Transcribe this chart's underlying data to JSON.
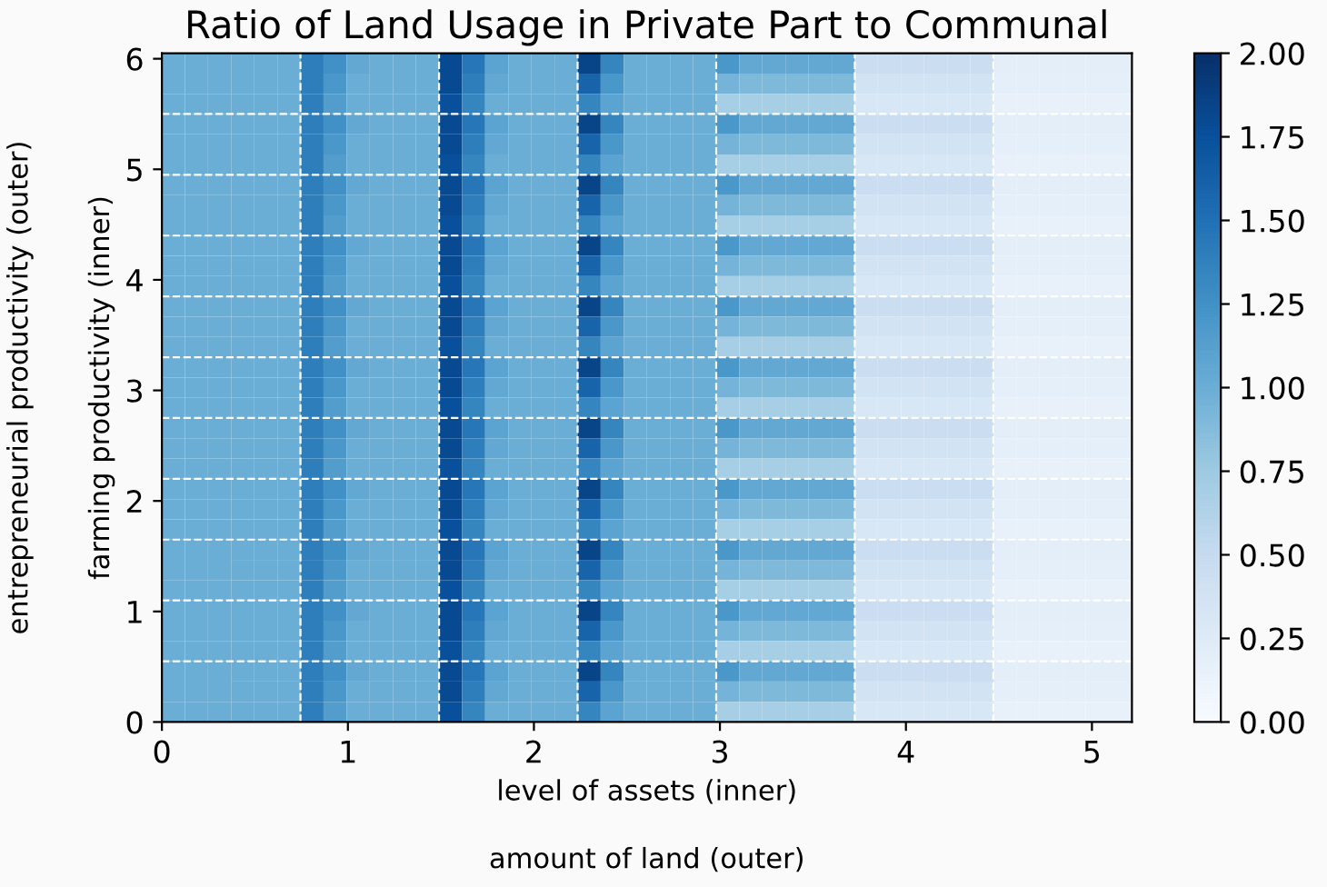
{
  "chart_data": {
    "type": "heatmap",
    "title": "Ratio of Land Usage in Private Part to Communal",
    "xlabel": "level of assets (inner)",
    "ylabel": "farming productivity (inner)",
    "annotations": [
      "amount of land (outer)",
      "entrepreneurial productivity (outer)"
    ],
    "x": [
      0.062,
      0.186,
      0.31,
      0.435,
      0.559,
      0.683,
      0.807,
      0.931,
      1.055,
      1.18,
      1.304,
      1.428,
      1.552,
      1.676,
      1.8,
      1.925,
      2.049,
      2.173,
      2.297,
      2.421,
      2.545,
      2.67,
      2.794,
      2.918,
      3.042,
      3.166,
      3.29,
      3.415,
      3.539,
      3.663,
      3.787,
      3.911,
      4.035,
      4.16,
      4.284,
      4.408,
      4.532,
      4.656,
      4.78,
      4.905,
      5.029,
      5.153
    ],
    "y": [
      5.958,
      5.775,
      5.592,
      5.408,
      5.225,
      5.042,
      4.858,
      4.675,
      4.492,
      4.308,
      4.125,
      3.942,
      3.758,
      3.575,
      3.392,
      3.208,
      3.025,
      2.842,
      2.658,
      2.475,
      2.292,
      2.108,
      1.925,
      1.742,
      1.558,
      1.375,
      1.192,
      1.008,
      0.825,
      0.642,
      0.458,
      0.275,
      0.092
    ],
    "xlim": [
      0,
      5.215
    ],
    "xticks": [
      0,
      1,
      2,
      3,
      4,
      5
    ],
    "ylim": [
      0,
      6.05
    ],
    "yticks": [
      0,
      1,
      2,
      3,
      4,
      5,
      6
    ],
    "clim": [
      0,
      2
    ],
    "cticks": [
      {
        "value": 0,
        "label": "0.00"
      },
      {
        "value": 0.25,
        "label": "0.25"
      },
      {
        "value": 0.5,
        "label": "0.50"
      },
      {
        "value": 0.75,
        "label": "0.75"
      },
      {
        "value": 1,
        "label": "1.00"
      },
      {
        "value": 1.25,
        "label": "1.25"
      },
      {
        "value": 1.5,
        "label": "1.50"
      },
      {
        "value": 1.75,
        "label": "1.75"
      },
      {
        "value": 2,
        "label": "2.00"
      }
    ],
    "grid": false,
    "ref_lines": [
      {
        "axis": "x",
        "value": 0.745,
        "color": "#ffffff",
        "line_style": "dashed"
      },
      {
        "axis": "x",
        "value": 1.49,
        "color": "#ffffff",
        "line_style": "dashed"
      },
      {
        "axis": "x",
        "value": 2.235,
        "color": "#ffffff",
        "line_style": "dashed"
      },
      {
        "axis": "x",
        "value": 2.98,
        "color": "#ffffff",
        "line_style": "dashed"
      },
      {
        "axis": "x",
        "value": 3.725,
        "color": "#ffffff",
        "line_style": "dashed"
      },
      {
        "axis": "x",
        "value": 4.47,
        "color": "#ffffff",
        "line_style": "dashed"
      },
      {
        "axis": "y",
        "value": 0.55,
        "color": "#ffffff",
        "line_style": "dashed"
      },
      {
        "axis": "y",
        "value": 1.1,
        "color": "#ffffff",
        "line_style": "dashed"
      },
      {
        "axis": "y",
        "value": 1.65,
        "color": "#ffffff",
        "line_style": "dashed"
      },
      {
        "axis": "y",
        "value": 2.2,
        "color": "#ffffff",
        "line_style": "dashed"
      },
      {
        "axis": "y",
        "value": 2.75,
        "color": "#ffffff",
        "line_style": "dashed"
      },
      {
        "axis": "y",
        "value": 3.3,
        "color": "#ffffff",
        "line_style": "dashed"
      },
      {
        "axis": "y",
        "value": 3.85,
        "color": "#ffffff",
        "line_style": "dashed"
      },
      {
        "axis": "y",
        "value": 4.4,
        "color": "#ffffff",
        "line_style": "dashed"
      },
      {
        "axis": "y",
        "value": 4.95,
        "color": "#ffffff",
        "line_style": "dashed"
      },
      {
        "axis": "y",
        "value": 5.5,
        "color": "#ffffff",
        "line_style": "dashed"
      }
    ],
    "cells": [
      [
        1,
        1,
        1,
        1,
        1,
        1,
        1.4,
        1.25,
        1.05,
        1,
        1,
        1,
        1.8,
        1.45,
        1.1,
        1,
        1,
        1,
        1.85,
        1.35,
        1,
        1,
        1,
        1,
        1.2,
        1.05,
        1.05,
        1.05,
        1.05,
        1.05,
        0.45,
        0.45,
        0.45,
        0.45,
        0.45,
        0.45,
        0.2,
        0.2,
        0.2,
        0.2,
        0.2,
        0.2
      ],
      [
        1,
        1,
        1,
        1,
        1,
        1,
        1.4,
        1.2,
        1,
        1,
        1,
        1,
        1.8,
        1.4,
        1.05,
        1,
        1,
        1,
        1.6,
        1.2,
        1,
        1,
        1,
        1,
        0.95,
        0.9,
        0.9,
        0.9,
        0.9,
        0.9,
        0.38,
        0.38,
        0.38,
        0.38,
        0.38,
        0.38,
        0.18,
        0.18,
        0.18,
        0.18,
        0.18,
        0.18
      ],
      [
        1,
        1,
        1,
        1,
        1,
        1,
        1.4,
        1.15,
        1,
        1,
        1,
        1,
        1.75,
        1.35,
        1,
        1,
        1,
        1,
        1.35,
        1.1,
        1,
        1,
        1,
        1,
        0.7,
        0.7,
        0.7,
        0.7,
        0.7,
        0.7,
        0.32,
        0.32,
        0.32,
        0.32,
        0.32,
        0.32,
        0.15,
        0.15,
        0.15,
        0.15,
        0.15,
        0.15
      ],
      [
        1,
        1,
        1,
        1,
        1,
        1,
        1.4,
        1.25,
        1.05,
        1,
        1,
        1,
        1.8,
        1.45,
        1.1,
        1,
        1,
        1,
        1.85,
        1.35,
        1,
        1,
        1,
        1,
        1.2,
        1.05,
        1.05,
        1.05,
        1.05,
        1.05,
        0.45,
        0.45,
        0.45,
        0.45,
        0.45,
        0.45,
        0.2,
        0.2,
        0.2,
        0.2,
        0.2,
        0.2
      ],
      [
        1,
        1,
        1,
        1,
        1,
        1,
        1.4,
        1.2,
        1,
        1,
        1,
        1,
        1.8,
        1.4,
        1.05,
        1,
        1,
        1,
        1.6,
        1.2,
        1,
        1,
        1,
        1,
        0.95,
        0.9,
        0.9,
        0.9,
        0.9,
        0.9,
        0.38,
        0.38,
        0.38,
        0.38,
        0.38,
        0.38,
        0.18,
        0.18,
        0.18,
        0.18,
        0.18,
        0.18
      ],
      [
        1,
        1,
        1,
        1,
        1,
        1,
        1.4,
        1.15,
        1,
        1,
        1,
        1,
        1.75,
        1.35,
        1,
        1,
        1,
        1,
        1.35,
        1.1,
        1,
        1,
        1,
        1,
        0.7,
        0.7,
        0.7,
        0.7,
        0.7,
        0.7,
        0.32,
        0.32,
        0.32,
        0.32,
        0.32,
        0.32,
        0.15,
        0.15,
        0.15,
        0.15,
        0.15,
        0.15
      ],
      [
        1,
        1,
        1,
        1,
        1,
        1,
        1.4,
        1.25,
        1.05,
        1,
        1,
        1,
        1.8,
        1.45,
        1.1,
        1,
        1,
        1,
        1.85,
        1.35,
        1,
        1,
        1,
        1,
        1.2,
        1.05,
        1.05,
        1.05,
        1.05,
        1.05,
        0.45,
        0.45,
        0.45,
        0.45,
        0.45,
        0.45,
        0.2,
        0.2,
        0.2,
        0.2,
        0.2,
        0.2
      ],
      [
        1,
        1,
        1,
        1,
        1,
        1,
        1.4,
        1.2,
        1,
        1,
        1,
        1,
        1.8,
        1.4,
        1.05,
        1,
        1,
        1,
        1.6,
        1.2,
        1,
        1,
        1,
        1,
        0.95,
        0.9,
        0.9,
        0.9,
        0.9,
        0.9,
        0.38,
        0.38,
        0.38,
        0.38,
        0.38,
        0.38,
        0.18,
        0.18,
        0.18,
        0.18,
        0.18,
        0.18
      ],
      [
        1,
        1,
        1,
        1,
        1,
        1,
        1.4,
        1.15,
        1,
        1,
        1,
        1,
        1.75,
        1.35,
        1,
        1,
        1,
        1,
        1.35,
        1.1,
        1,
        1,
        1,
        1,
        0.7,
        0.7,
        0.7,
        0.7,
        0.7,
        0.7,
        0.32,
        0.32,
        0.32,
        0.32,
        0.32,
        0.32,
        0.15,
        0.15,
        0.15,
        0.15,
        0.15,
        0.15
      ],
      [
        1,
        1,
        1,
        1,
        1,
        1,
        1.4,
        1.25,
        1.05,
        1,
        1,
        1,
        1.8,
        1.45,
        1.1,
        1,
        1,
        1,
        1.85,
        1.35,
        1,
        1,
        1,
        1,
        1.2,
        1.05,
        1.05,
        1.05,
        1.05,
        1.05,
        0.45,
        0.45,
        0.45,
        0.45,
        0.45,
        0.45,
        0.2,
        0.2,
        0.2,
        0.2,
        0.2,
        0.2
      ],
      [
        1,
        1,
        1,
        1,
        1,
        1,
        1.4,
        1.2,
        1,
        1,
        1,
        1,
        1.8,
        1.4,
        1.05,
        1,
        1,
        1,
        1.6,
        1.2,
        1,
        1,
        1,
        1,
        0.95,
        0.9,
        0.9,
        0.9,
        0.9,
        0.9,
        0.38,
        0.38,
        0.38,
        0.38,
        0.38,
        0.38,
        0.18,
        0.18,
        0.18,
        0.18,
        0.18,
        0.18
      ],
      [
        1,
        1,
        1,
        1,
        1,
        1,
        1.4,
        1.15,
        1,
        1,
        1,
        1,
        1.75,
        1.35,
        1,
        1,
        1,
        1,
        1.35,
        1.1,
        1,
        1,
        1,
        1,
        0.7,
        0.7,
        0.7,
        0.7,
        0.7,
        0.7,
        0.32,
        0.32,
        0.32,
        0.32,
        0.32,
        0.32,
        0.15,
        0.15,
        0.15,
        0.15,
        0.15,
        0.15
      ],
      [
        1,
        1,
        1,
        1,
        1,
        1,
        1.4,
        1.25,
        1.05,
        1,
        1,
        1,
        1.8,
        1.45,
        1.1,
        1,
        1,
        1,
        1.85,
        1.35,
        1,
        1,
        1,
        1,
        1.2,
        1.05,
        1.05,
        1.05,
        1.05,
        1.05,
        0.45,
        0.45,
        0.45,
        0.45,
        0.45,
        0.45,
        0.2,
        0.2,
        0.2,
        0.2,
        0.2,
        0.2
      ],
      [
        1,
        1,
        1,
        1,
        1,
        1,
        1.4,
        1.2,
        1,
        1,
        1,
        1,
        1.8,
        1.4,
        1.05,
        1,
        1,
        1,
        1.6,
        1.2,
        1,
        1,
        1,
        1,
        0.95,
        0.9,
        0.9,
        0.9,
        0.9,
        0.9,
        0.38,
        0.38,
        0.38,
        0.38,
        0.38,
        0.38,
        0.18,
        0.18,
        0.18,
        0.18,
        0.18,
        0.18
      ],
      [
        1,
        1,
        1,
        1,
        1,
        1,
        1.4,
        1.15,
        1,
        1,
        1,
        1,
        1.75,
        1.35,
        1,
        1,
        1,
        1,
        1.35,
        1.1,
        1,
        1,
        1,
        1,
        0.7,
        0.7,
        0.7,
        0.7,
        0.7,
        0.7,
        0.32,
        0.32,
        0.32,
        0.32,
        0.32,
        0.32,
        0.15,
        0.15,
        0.15,
        0.15,
        0.15,
        0.15
      ],
      [
        1,
        1,
        1,
        1,
        1,
        1,
        1.4,
        1.25,
        1.05,
        1,
        1,
        1,
        1.8,
        1.45,
        1.1,
        1,
        1,
        1,
        1.85,
        1.35,
        1,
        1,
        1,
        1,
        1.2,
        1.05,
        1.05,
        1.05,
        1.05,
        1.05,
        0.45,
        0.45,
        0.45,
        0.45,
        0.45,
        0.45,
        0.2,
        0.2,
        0.2,
        0.2,
        0.2,
        0.2
      ],
      [
        1,
        1,
        1,
        1,
        1,
        1,
        1.4,
        1.2,
        1,
        1,
        1,
        1,
        1.8,
        1.4,
        1.05,
        1,
        1,
        1,
        1.6,
        1.2,
        1,
        1,
        1,
        1,
        0.95,
        0.9,
        0.9,
        0.9,
        0.9,
        0.9,
        0.38,
        0.38,
        0.38,
        0.38,
        0.38,
        0.38,
        0.18,
        0.18,
        0.18,
        0.18,
        0.18,
        0.18
      ],
      [
        1,
        1,
        1,
        1,
        1,
        1,
        1.4,
        1.15,
        1,
        1,
        1,
        1,
        1.75,
        1.35,
        1,
        1,
        1,
        1,
        1.35,
        1.1,
        1,
        1,
        1,
        1,
        0.7,
        0.7,
        0.7,
        0.7,
        0.7,
        0.7,
        0.32,
        0.32,
        0.32,
        0.32,
        0.32,
        0.32,
        0.15,
        0.15,
        0.15,
        0.15,
        0.15,
        0.15
      ],
      [
        1,
        1,
        1,
        1,
        1,
        1,
        1.4,
        1.25,
        1.05,
        1,
        1,
        1,
        1.8,
        1.45,
        1.1,
        1,
        1,
        1,
        1.85,
        1.35,
        1,
        1,
        1,
        1,
        1.2,
        1.05,
        1.05,
        1.05,
        1.05,
        1.05,
        0.45,
        0.45,
        0.45,
        0.45,
        0.45,
        0.45,
        0.2,
        0.2,
        0.2,
        0.2,
        0.2,
        0.2
      ],
      [
        1,
        1,
        1,
        1,
        1,
        1,
        1.4,
        1.2,
        1,
        1,
        1,
        1,
        1.8,
        1.4,
        1.05,
        1,
        1,
        1,
        1.6,
        1.2,
        1,
        1,
        1,
        1,
        0.95,
        0.9,
        0.9,
        0.9,
        0.9,
        0.9,
        0.38,
        0.38,
        0.38,
        0.38,
        0.38,
        0.38,
        0.18,
        0.18,
        0.18,
        0.18,
        0.18,
        0.18
      ],
      [
        1,
        1,
        1,
        1,
        1,
        1,
        1.4,
        1.15,
        1,
        1,
        1,
        1,
        1.75,
        1.35,
        1,
        1,
        1,
        1,
        1.35,
        1.1,
        1,
        1,
        1,
        1,
        0.7,
        0.7,
        0.7,
        0.7,
        0.7,
        0.7,
        0.32,
        0.32,
        0.32,
        0.32,
        0.32,
        0.32,
        0.15,
        0.15,
        0.15,
        0.15,
        0.15,
        0.15
      ],
      [
        1,
        1,
        1,
        1,
        1,
        1,
        1.4,
        1.25,
        1.05,
        1,
        1,
        1,
        1.8,
        1.45,
        1.1,
        1,
        1,
        1,
        1.85,
        1.35,
        1,
        1,
        1,
        1,
        1.2,
        1.05,
        1.05,
        1.05,
        1.05,
        1.05,
        0.45,
        0.45,
        0.45,
        0.45,
        0.45,
        0.45,
        0.2,
        0.2,
        0.2,
        0.2,
        0.2,
        0.2
      ],
      [
        1,
        1,
        1,
        1,
        1,
        1,
        1.4,
        1.2,
        1,
        1,
        1,
        1,
        1.8,
        1.4,
        1.05,
        1,
        1,
        1,
        1.6,
        1.2,
        1,
        1,
        1,
        1,
        0.95,
        0.9,
        0.9,
        0.9,
        0.9,
        0.9,
        0.38,
        0.38,
        0.38,
        0.38,
        0.38,
        0.38,
        0.18,
        0.18,
        0.18,
        0.18,
        0.18,
        0.18
      ],
      [
        1,
        1,
        1,
        1,
        1,
        1,
        1.4,
        1.15,
        1,
        1,
        1,
        1,
        1.75,
        1.35,
        1,
        1,
        1,
        1,
        1.35,
        1.1,
        1,
        1,
        1,
        1,
        0.7,
        0.7,
        0.7,
        0.7,
        0.7,
        0.7,
        0.32,
        0.32,
        0.32,
        0.32,
        0.32,
        0.32,
        0.15,
        0.15,
        0.15,
        0.15,
        0.15,
        0.15
      ],
      [
        1,
        1,
        1,
        1,
        1,
        1,
        1.4,
        1.25,
        1.05,
        1,
        1,
        1,
        1.8,
        1.45,
        1.1,
        1,
        1,
        1,
        1.85,
        1.35,
        1,
        1,
        1,
        1,
        1.2,
        1.05,
        1.05,
        1.05,
        1.05,
        1.05,
        0.45,
        0.45,
        0.45,
        0.45,
        0.45,
        0.45,
        0.2,
        0.2,
        0.2,
        0.2,
        0.2,
        0.2
      ],
      [
        1,
        1,
        1,
        1,
        1,
        1,
        1.4,
        1.2,
        1,
        1,
        1,
        1,
        1.8,
        1.4,
        1.05,
        1,
        1,
        1,
        1.6,
        1.2,
        1,
        1,
        1,
        1,
        0.95,
        0.9,
        0.9,
        0.9,
        0.9,
        0.9,
        0.38,
        0.38,
        0.38,
        0.38,
        0.38,
        0.38,
        0.18,
        0.18,
        0.18,
        0.18,
        0.18,
        0.18
      ],
      [
        1,
        1,
        1,
        1,
        1,
        1,
        1.4,
        1.15,
        1,
        1,
        1,
        1,
        1.75,
        1.35,
        1,
        1,
        1,
        1,
        1.35,
        1.1,
        1,
        1,
        1,
        1,
        0.7,
        0.7,
        0.7,
        0.7,
        0.7,
        0.7,
        0.32,
        0.32,
        0.32,
        0.32,
        0.32,
        0.32,
        0.15,
        0.15,
        0.15,
        0.15,
        0.15,
        0.15
      ],
      [
        1,
        1,
        1,
        1,
        1,
        1,
        1.4,
        1.25,
        1.05,
        1,
        1,
        1,
        1.8,
        1.45,
        1.1,
        1,
        1,
        1,
        1.85,
        1.35,
        1,
        1,
        1,
        1,
        1.2,
        1.05,
        1.05,
        1.05,
        1.05,
        1.05,
        0.45,
        0.45,
        0.45,
        0.45,
        0.45,
        0.45,
        0.2,
        0.2,
        0.2,
        0.2,
        0.2,
        0.2
      ],
      [
        1,
        1,
        1,
        1,
        1,
        1,
        1.4,
        1.2,
        1,
        1,
        1,
        1,
        1.8,
        1.4,
        1.05,
        1,
        1,
        1,
        1.6,
        1.2,
        1,
        1,
        1,
        1,
        0.95,
        0.9,
        0.9,
        0.9,
        0.9,
        0.9,
        0.38,
        0.38,
        0.38,
        0.38,
        0.38,
        0.38,
        0.18,
        0.18,
        0.18,
        0.18,
        0.18,
        0.18
      ],
      [
        1,
        1,
        1,
        1,
        1,
        1,
        1.4,
        1.15,
        1,
        1,
        1,
        1,
        1.75,
        1.35,
        1,
        1,
        1,
        1,
        1.35,
        1.1,
        1,
        1,
        1,
        1,
        0.7,
        0.7,
        0.7,
        0.7,
        0.7,
        0.7,
        0.32,
        0.32,
        0.32,
        0.32,
        0.32,
        0.32,
        0.15,
        0.15,
        0.15,
        0.15,
        0.15,
        0.15
      ],
      [
        1,
        1,
        1,
        1,
        1,
        1,
        1.4,
        1.25,
        1.05,
        1,
        1,
        1,
        1.8,
        1.45,
        1.1,
        1,
        1,
        1,
        1.85,
        1.35,
        1,
        1,
        1,
        1,
        1.2,
        1.05,
        1.05,
        1.05,
        1.05,
        1.05,
        0.45,
        0.45,
        0.45,
        0.45,
        0.45,
        0.45,
        0.2,
        0.2,
        0.2,
        0.2,
        0.2,
        0.2
      ],
      [
        1,
        1,
        1,
        1,
        1,
        1,
        1.4,
        1.2,
        1,
        1,
        1,
        1,
        1.8,
        1.4,
        1.05,
        1,
        1,
        1,
        1.6,
        1.2,
        1,
        1,
        1,
        1,
        0.95,
        0.9,
        0.9,
        0.9,
        0.9,
        0.9,
        0.38,
        0.38,
        0.38,
        0.38,
        0.38,
        0.38,
        0.18,
        0.18,
        0.18,
        0.18,
        0.18,
        0.18
      ],
      [
        1,
        1,
        1,
        1,
        1,
        1,
        1.4,
        1.15,
        1,
        1,
        1,
        1,
        1.75,
        1.35,
        1,
        1,
        1,
        1,
        1.35,
        1.1,
        1,
        1,
        1,
        1,
        0.7,
        0.7,
        0.7,
        0.7,
        0.7,
        0.7,
        0.32,
        0.32,
        0.32,
        0.32,
        0.32,
        0.32,
        0.15,
        0.15,
        0.15,
        0.15,
        0.15,
        0.15
      ]
    ]
  }
}
